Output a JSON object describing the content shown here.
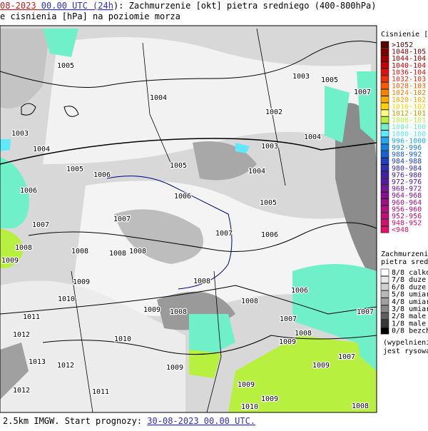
{
  "header": {
    "line1": [
      {
        "text": "08-2023 ",
        "color": "#c02020"
      },
      {
        "text": "00.00",
        "color": "#3030c0"
      },
      {
        "text": " UTC (",
        "color": "#3030c0"
      },
      {
        "text": "24h",
        "color": "#3030c0"
      },
      {
        "text": "): Zachmurzenie [okt] pietra sredniego (400-800hPa)",
        "color": "#000000"
      }
    ],
    "line2": "e cisnienia [hPa] na poziomie morza"
  },
  "footer": [
    {
      "text": "2.5km IMGW. Start prognozy: ",
      "color": "#000000"
    },
    {
      "text": "30-08-2023 00.00",
      "color": "#3030c0"
    },
    {
      "text": " UTC.",
      "color": "#3030c0"
    }
  ],
  "pressure_legend": {
    "title": "Cisnienie [hP",
    "items": [
      {
        "label": ">1052",
        "color": "#5a0000"
      },
      {
        "label": "1048-105",
        "color": "#7a0000"
      },
      {
        "label": "1044-104",
        "color": "#a00000"
      },
      {
        "label": "1040-104",
        "color": "#c80000"
      },
      {
        "label": "1036-104",
        "color": "#e01010"
      },
      {
        "label": "1032-103",
        "color": "#f03010"
      },
      {
        "label": "1028-103",
        "color": "#f85a00"
      },
      {
        "label": "1024-102",
        "color": "#fa8200"
      },
      {
        "label": "1020-102",
        "color": "#fcaa00"
      },
      {
        "label": "1016-102",
        "color": "#ffd200"
      },
      {
        "label": "1012-101",
        "color": "#ffff80"
      },
      {
        "label": "1008-101",
        "color": "#b8f040"
      },
      {
        "label": "1004-100",
        "color": "#70f0c8"
      },
      {
        "label": "1000-100",
        "color": "#60e8ff"
      },
      {
        "label": "996-1000",
        "color": "#20a8f0"
      },
      {
        "label": "992-996",
        "color": "#1880e0"
      },
      {
        "label": "988-992",
        "color": "#1860d0"
      },
      {
        "label": "984-988",
        "color": "#2040c0"
      },
      {
        "label": "980-984",
        "color": "#3030b0"
      },
      {
        "label": "976-980",
        "color": "#4020a8"
      },
      {
        "label": "972-976",
        "color": "#5818a0"
      },
      {
        "label": "968-972",
        "color": "#701898"
      },
      {
        "label": "964-968",
        "color": "#881090"
      },
      {
        "label": "960-964",
        "color": "#a01088"
      },
      {
        "label": "956-960",
        "color": "#b01080"
      },
      {
        "label": "952-956",
        "color": "#c01078"
      },
      {
        "label": "948-952",
        "color": "#d01070"
      },
      {
        "label": "<948",
        "color": "#e01068"
      }
    ]
  },
  "cloud_legend": {
    "title": [
      "Zachmurzenie",
      "pietra srednie"
    ],
    "items": [
      {
        "label": "8/8 calkow",
        "color": "#ffffff"
      },
      {
        "label": "7/8 duze",
        "color": "#e8e8e8"
      },
      {
        "label": "6/8 duze",
        "color": "#d0d0d0"
      },
      {
        "label": "5/8 umiar",
        "color": "#b8b8b8"
      },
      {
        "label": "4/8 umiar",
        "color": "#a0a0a0"
      },
      {
        "label": "3/8 umiar",
        "color": "#888888"
      },
      {
        "label": "2/8 male",
        "color": "#606060"
      },
      {
        "label": "1/8 male",
        "color": "#383838"
      },
      {
        "label": "0/8 bezch",
        "color": "#000000"
      }
    ],
    "note": [
      "(wypelnieni",
      "jest rysowa"
    ]
  },
  "isobar_labels": [
    "1005",
    "1003",
    "1004",
    "1005",
    "1006",
    "1006",
    "1007",
    "1008",
    "1009",
    "1004",
    "1002",
    "1003",
    "1005",
    "1007",
    "1003",
    "1004",
    "1005",
    "1004",
    "1006",
    "1005",
    "1006",
    "1007",
    "1007",
    "1008",
    "1008",
    "1008",
    "1009",
    "1010",
    "1008",
    "1008",
    "1006",
    "1009",
    "1008",
    "1011",
    "1012",
    "1013",
    "1012",
    "1012",
    "1011",
    "1010",
    "1009",
    "1009",
    "1009",
    "1009",
    "1007",
    "1007",
    "1008",
    "1010",
    "1008",
    "1007",
    "1009"
  ]
}
